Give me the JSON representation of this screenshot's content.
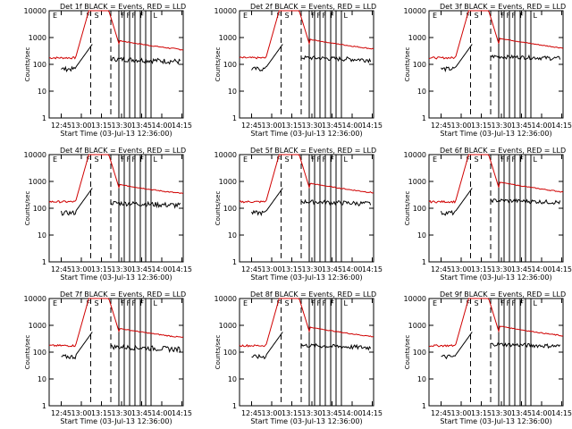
{
  "colors": {
    "events": "#000000",
    "lld": "#d00000",
    "axes": "#000000"
  },
  "shared": {
    "xlabel": "Start Time (03-Jul-13 12:36:00)",
    "ylabel": "Counts/sec",
    "x_ticks": [
      "12:45",
      "13:00",
      "13:15",
      "13:30",
      "13:45",
      "14:00",
      "14:15"
    ],
    "x_tick_minutes": [
      9,
      24,
      39,
      54,
      69,
      84,
      99
    ],
    "y_ticks": [
      "1",
      "10",
      "100",
      "1000",
      "10000"
    ],
    "y_tick_values": [
      1,
      10,
      100,
      1000,
      10000
    ],
    "xlim_minutes": [
      0,
      100
    ],
    "ylim": [
      1,
      10000
    ],
    "y_scale": "log",
    "dashed_lines_minutes": [
      31,
      46
    ],
    "solid_lines_minutes": [
      52,
      56,
      60,
      64,
      68,
      72,
      76
    ]
  },
  "chart_data": [
    {
      "type": "line",
      "title": "Det 1f BLACK = Events, RED = LLD",
      "corner_labels": [
        "E",
        "F",
        "S",
        "F",
        "F",
        "F",
        "F",
        "L"
      ]
    },
    {
      "type": "line",
      "title": "Det 2f BLACK = Events, RED = LLD",
      "corner_labels": [
        "E",
        "F",
        "S",
        "F",
        "F",
        "F",
        "F",
        "L"
      ]
    },
    {
      "type": "line",
      "title": "Det 3f BLACK = Events, RED = LLD",
      "corner_labels": [
        "E",
        "F",
        "S",
        "F",
        "F",
        "F",
        "F",
        "L"
      ]
    },
    {
      "type": "line",
      "title": "Det 4f BLACK = Events, RED = LLD",
      "corner_labels": [
        "E",
        "F",
        "S",
        "F",
        "F",
        "F",
        "F",
        "L"
      ]
    },
    {
      "type": "line",
      "title": "Det 5f BLACK = Events, RED = LLD",
      "corner_labels": [
        "E",
        "F",
        "S",
        "F",
        "F",
        "F",
        "F",
        "L"
      ]
    },
    {
      "type": "line",
      "title": "Det 6f BLACK = Events, RED = LLD",
      "corner_labels": [
        "E",
        "F",
        "S",
        "F",
        "F",
        "F",
        "F",
        "L"
      ]
    },
    {
      "type": "line",
      "title": "Det 7f BLACK = Events, RED = LLD",
      "corner_labels": [
        "E",
        "F",
        "S",
        "F",
        "F",
        "F",
        "F",
        "L"
      ]
    },
    {
      "type": "line",
      "title": "Det 8f BLACK = Events, RED = LLD",
      "corner_labels": [
        "E",
        "F",
        "S",
        "F",
        "F",
        "F",
        "F",
        "L"
      ]
    },
    {
      "type": "line",
      "title": "Det 9f BLACK = Events, RED = LLD",
      "corner_labels": [
        "E",
        "F",
        "S",
        "F",
        "F",
        "F",
        "F",
        "L"
      ]
    }
  ]
}
